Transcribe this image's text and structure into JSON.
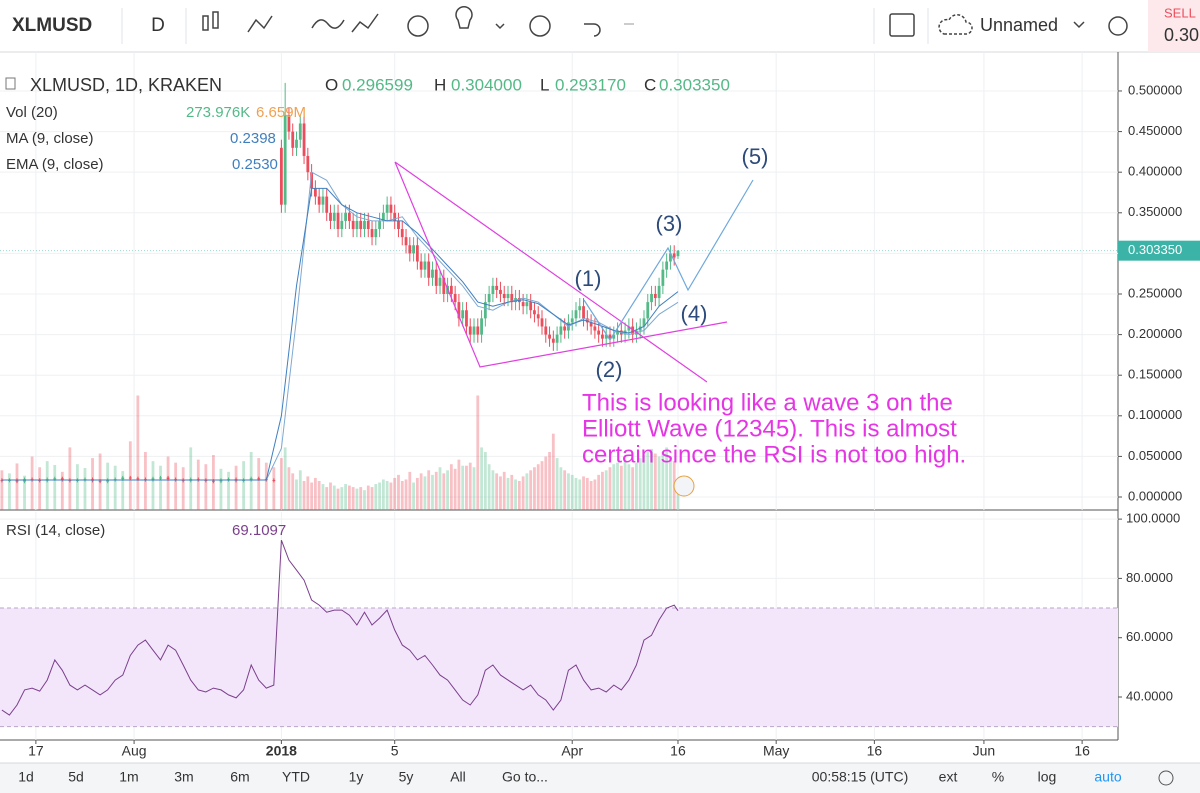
{
  "toolbar": {
    "symbol": "XLMUSD",
    "interval": "D",
    "layout": "Unnamed",
    "sell": "SELL",
    "sell_price": "0.30"
  },
  "legend": {
    "symbol": "XLMUSD, 1D, KRAKEN",
    "o_key": "O",
    "o": "0.296599",
    "h_key": "H",
    "h": "0.304000",
    "l_key": "L",
    "l": "0.293170",
    "c_key": "C",
    "c": "0.303350",
    "vol": "Vol (20)",
    "vol_value": "273.976K",
    "vol_ma": "6.659M",
    "ma": "MA (9, close)",
    "ma_value": "0.2398",
    "ema": "EMA (9, close)",
    "ema_value": "0.2530",
    "rsi": "RSI (14, close)",
    "rsi_value": "69.1097"
  },
  "chart_data": {
    "type": "candlestick",
    "colors": {
      "up": "#53b987",
      "down": "#eb4d5c",
      "ma": "#7fa9d3",
      "ema": "#3f7fbf",
      "rsi": "#7b3f8c",
      "last": "#3bb3a6"
    },
    "grid": true,
    "xlim": [
      -0.5,
      295.5
    ],
    "ylim": [
      -0.016,
      0.548
    ],
    "yticks": [
      {
        "value": 0.5,
        "label": "0.500000"
      },
      {
        "value": 0.45,
        "label": "0.450000"
      },
      {
        "value": 0.4,
        "label": "0.400000"
      },
      {
        "value": 0.35,
        "label": "0.350000"
      },
      {
        "value": 0.3,
        "label": "0.300000"
      },
      {
        "value": 0.25,
        "label": "0.250000"
      },
      {
        "value": 0.2,
        "label": "0.200000"
      },
      {
        "value": 0.15,
        "label": "0.150000"
      },
      {
        "value": 0.1,
        "label": "0.100000"
      },
      {
        "value": 0.05,
        "label": "0.050000"
      },
      {
        "value": 0,
        "label": "0.000000"
      }
    ],
    "xticks": [
      {
        "value": 9,
        "label": "17"
      },
      {
        "value": 35,
        "label": "Aug"
      },
      {
        "value": 74,
        "label": "2018"
      },
      {
        "value": 104,
        "label": "5"
      },
      {
        "value": 151,
        "label": "Apr"
      },
      {
        "value": 179,
        "label": "16"
      },
      {
        "value": 205,
        "label": "May"
      },
      {
        "value": 231,
        "label": "16"
      },
      {
        "value": 260,
        "label": "Jun"
      },
      {
        "value": 286,
        "label": "16"
      }
    ],
    "last_price": {
      "value": 0.30335,
      "label": "0.303350"
    },
    "candles": {
      "x": [
        0,
        2,
        4,
        6,
        8,
        10,
        12,
        14,
        16,
        18,
        20,
        22,
        24,
        26,
        28,
        30,
        32,
        34,
        36,
        38,
        40,
        42,
        44,
        46,
        48,
        50,
        52,
        54,
        56,
        58,
        60,
        62,
        64,
        66,
        68,
        70,
        72,
        74,
        75,
        76,
        77,
        78,
        79,
        80,
        81,
        82,
        83,
        84,
        85,
        86,
        87,
        88,
        89,
        90,
        91,
        92,
        93,
        94,
        95,
        96,
        97,
        98,
        99,
        100,
        101,
        102,
        103,
        104,
        105,
        106,
        107,
        108,
        109,
        110,
        111,
        112,
        113,
        114,
        115,
        116,
        117,
        118,
        119,
        120,
        121,
        122,
        123,
        124,
        125,
        126,
        127,
        128,
        129,
        130,
        131,
        132,
        133,
        134,
        135,
        136,
        137,
        138,
        139,
        140,
        141,
        142,
        143,
        144,
        145,
        146,
        147,
        148,
        149,
        150,
        151,
        152,
        153,
        154,
        155,
        156,
        157,
        158,
        159,
        160,
        161,
        162,
        163,
        164,
        165,
        166,
        167,
        168,
        169,
        170,
        171,
        172,
        173,
        174,
        175,
        176,
        177,
        178,
        179
      ],
      "open": [
        0.021,
        0.02,
        0.021,
        0.019,
        0.022,
        0.021,
        0.02,
        0.022,
        0.023,
        0.021,
        0.02,
        0.021,
        0.022,
        0.02,
        0.019,
        0.021,
        0.022,
        0.024,
        0.023,
        0.022,
        0.021,
        0.023,
        0.024,
        0.022,
        0.021,
        0.02,
        0.022,
        0.021,
        0.02,
        0.019,
        0.021,
        0.022,
        0.02,
        0.021,
        0.023,
        0.022,
        0.021,
        0.43,
        0.36,
        0.47,
        0.45,
        0.43,
        0.44,
        0.46,
        0.42,
        0.4,
        0.38,
        0.37,
        0.36,
        0.37,
        0.35,
        0.34,
        0.35,
        0.33,
        0.34,
        0.35,
        0.34,
        0.33,
        0.34,
        0.33,
        0.34,
        0.33,
        0.32,
        0.33,
        0.34,
        0.35,
        0.36,
        0.35,
        0.34,
        0.33,
        0.32,
        0.31,
        0.3,
        0.31,
        0.29,
        0.28,
        0.29,
        0.27,
        0.28,
        0.26,
        0.27,
        0.25,
        0.26,
        0.25,
        0.24,
        0.22,
        0.23,
        0.21,
        0.2,
        0.21,
        0.2,
        0.22,
        0.24,
        0.25,
        0.26,
        0.255,
        0.25,
        0.245,
        0.25,
        0.24,
        0.245,
        0.24,
        0.235,
        0.24,
        0.23,
        0.225,
        0.22,
        0.21,
        0.2,
        0.195,
        0.19,
        0.2,
        0.21,
        0.205,
        0.215,
        0.22,
        0.23,
        0.235,
        0.22,
        0.215,
        0.21,
        0.205,
        0.2,
        0.195,
        0.2,
        0.195,
        0.2,
        0.205,
        0.2,
        0.205,
        0.21,
        0.2,
        0.205,
        0.21,
        0.22,
        0.24,
        0.25,
        0.245,
        0.26,
        0.28,
        0.29,
        0.3,
        0.296599
      ],
      "high": [
        0.023,
        0.023,
        0.023,
        0.024,
        0.024,
        0.023,
        0.024,
        0.025,
        0.025,
        0.023,
        0.023,
        0.024,
        0.024,
        0.022,
        0.023,
        0.024,
        0.026,
        0.026,
        0.025,
        0.024,
        0.025,
        0.026,
        0.026,
        0.024,
        0.023,
        0.024,
        0.024,
        0.023,
        0.022,
        0.023,
        0.024,
        0.024,
        0.023,
        0.025,
        0.025,
        0.024,
        0.023,
        0.44,
        0.51,
        0.48,
        0.46,
        0.45,
        0.47,
        0.47,
        0.43,
        0.41,
        0.39,
        0.38,
        0.38,
        0.38,
        0.36,
        0.36,
        0.36,
        0.35,
        0.36,
        0.36,
        0.35,
        0.35,
        0.35,
        0.35,
        0.35,
        0.34,
        0.34,
        0.35,
        0.36,
        0.37,
        0.37,
        0.36,
        0.35,
        0.34,
        0.33,
        0.32,
        0.32,
        0.32,
        0.3,
        0.3,
        0.3,
        0.29,
        0.29,
        0.28,
        0.28,
        0.27,
        0.27,
        0.26,
        0.25,
        0.24,
        0.24,
        0.22,
        0.22,
        0.22,
        0.23,
        0.25,
        0.26,
        0.27,
        0.27,
        0.265,
        0.26,
        0.26,
        0.26,
        0.255,
        0.255,
        0.25,
        0.25,
        0.25,
        0.24,
        0.235,
        0.23,
        0.22,
        0.21,
        0.205,
        0.21,
        0.22,
        0.22,
        0.225,
        0.23,
        0.24,
        0.245,
        0.245,
        0.23,
        0.225,
        0.22,
        0.215,
        0.21,
        0.21,
        0.21,
        0.21,
        0.215,
        0.215,
        0.215,
        0.22,
        0.22,
        0.215,
        0.22,
        0.23,
        0.25,
        0.26,
        0.26,
        0.27,
        0.29,
        0.3,
        0.31,
        0.31,
        0.304
      ],
      "low": [
        0.018,
        0.018,
        0.017,
        0.017,
        0.019,
        0.018,
        0.018,
        0.02,
        0.019,
        0.018,
        0.018,
        0.019,
        0.018,
        0.017,
        0.017,
        0.019,
        0.02,
        0.021,
        0.02,
        0.019,
        0.019,
        0.021,
        0.02,
        0.019,
        0.018,
        0.018,
        0.019,
        0.018,
        0.017,
        0.017,
        0.019,
        0.018,
        0.018,
        0.019,
        0.02,
        0.019,
        0.018,
        0.35,
        0.35,
        0.44,
        0.42,
        0.42,
        0.43,
        0.41,
        0.39,
        0.37,
        0.36,
        0.35,
        0.35,
        0.34,
        0.33,
        0.33,
        0.32,
        0.32,
        0.33,
        0.33,
        0.32,
        0.32,
        0.32,
        0.32,
        0.32,
        0.31,
        0.31,
        0.32,
        0.33,
        0.34,
        0.34,
        0.33,
        0.32,
        0.31,
        0.3,
        0.29,
        0.29,
        0.28,
        0.27,
        0.27,
        0.26,
        0.26,
        0.25,
        0.25,
        0.24,
        0.24,
        0.24,
        0.23,
        0.21,
        0.21,
        0.2,
        0.19,
        0.19,
        0.19,
        0.19,
        0.21,
        0.23,
        0.24,
        0.245,
        0.24,
        0.235,
        0.235,
        0.23,
        0.23,
        0.23,
        0.225,
        0.225,
        0.22,
        0.215,
        0.21,
        0.2,
        0.19,
        0.185,
        0.18,
        0.18,
        0.19,
        0.195,
        0.195,
        0.205,
        0.21,
        0.22,
        0.21,
        0.205,
        0.2,
        0.195,
        0.19,
        0.185,
        0.185,
        0.185,
        0.185,
        0.19,
        0.19,
        0.19,
        0.195,
        0.19,
        0.19,
        0.195,
        0.2,
        0.21,
        0.23,
        0.235,
        0.235,
        0.25,
        0.27,
        0.28,
        0.285,
        0.29317
      ],
      "close": [
        0.02,
        0.021,
        0.019,
        0.022,
        0.021,
        0.02,
        0.022,
        0.023,
        0.021,
        0.02,
        0.021,
        0.022,
        0.02,
        0.019,
        0.021,
        0.022,
        0.024,
        0.023,
        0.022,
        0.021,
        0.023,
        0.024,
        0.022,
        0.021,
        0.02,
        0.022,
        0.021,
        0.02,
        0.019,
        0.021,
        0.022,
        0.02,
        0.021,
        0.023,
        0.022,
        0.021,
        0.02,
        0.36,
        0.47,
        0.45,
        0.43,
        0.44,
        0.46,
        0.42,
        0.4,
        0.38,
        0.37,
        0.36,
        0.37,
        0.35,
        0.34,
        0.35,
        0.33,
        0.34,
        0.35,
        0.34,
        0.33,
        0.34,
        0.33,
        0.34,
        0.33,
        0.32,
        0.33,
        0.34,
        0.35,
        0.36,
        0.35,
        0.34,
        0.33,
        0.32,
        0.31,
        0.3,
        0.31,
        0.29,
        0.28,
        0.29,
        0.27,
        0.28,
        0.26,
        0.27,
        0.25,
        0.26,
        0.25,
        0.24,
        0.22,
        0.23,
        0.21,
        0.2,
        0.21,
        0.2,
        0.22,
        0.24,
        0.25,
        0.26,
        0.255,
        0.25,
        0.245,
        0.25,
        0.24,
        0.245,
        0.24,
        0.235,
        0.24,
        0.23,
        0.225,
        0.22,
        0.21,
        0.2,
        0.195,
        0.19,
        0.2,
        0.21,
        0.205,
        0.215,
        0.22,
        0.23,
        0.235,
        0.22,
        0.215,
        0.21,
        0.205,
        0.2,
        0.195,
        0.2,
        0.195,
        0.2,
        0.205,
        0.2,
        0.205,
        0.21,
        0.2,
        0.205,
        0.21,
        0.22,
        0.24,
        0.25,
        0.245,
        0.26,
        0.28,
        0.29,
        0.3,
        0.295,
        0.30335
      ]
    },
    "volume": {
      "ylim": [
        0,
        6000
      ],
      "values": [
        520,
        480,
        610,
        450,
        700,
        560,
        640,
        590,
        500,
        820,
        600,
        550,
        680,
        740,
        620,
        580,
        510,
        900,
        1500,
        760,
        640,
        580,
        700,
        620,
        560,
        820,
        660,
        600,
        720,
        540,
        500,
        580,
        640,
        760,
        680,
        620,
        560,
        680,
        820,
        560,
        480,
        400,
        520,
        380,
        440,
        360,
        420,
        380,
        340,
        300,
        360,
        320,
        280,
        300,
        340,
        320,
        300,
        280,
        300,
        260,
        320,
        300,
        340,
        360,
        400,
        380,
        360,
        420,
        460,
        380,
        400,
        500,
        360,
        420,
        480,
        440,
        520,
        460,
        500,
        560,
        480,
        520,
        600,
        540,
        660,
        580,
        580,
        620,
        560,
        1500,
        820,
        760,
        600,
        520,
        480,
        440,
        500,
        420,
        460,
        400,
        380,
        440,
        480,
        520,
        560,
        600,
        640,
        700,
        760,
        1000,
        680,
        560,
        520,
        480,
        460,
        420,
        400,
        440,
        420,
        380,
        400,
        460,
        500,
        520,
        560,
        600,
        620,
        580,
        640,
        600,
        560,
        620,
        680,
        720,
        760,
        800,
        740,
        700,
        760,
        820,
        700,
        640,
        273.976
      ]
    },
    "ma": {
      "x": [
        0,
        40,
        70,
        74,
        78,
        82,
        86,
        90,
        94,
        98,
        102,
        106,
        110,
        114,
        118,
        122,
        126,
        130,
        134,
        138,
        142,
        146,
        150,
        154,
        158,
        162,
        166,
        170,
        174,
        179
      ],
      "values": [
        0.021,
        0.021,
        0.021,
        0.06,
        0.22,
        0.4,
        0.39,
        0.36,
        0.345,
        0.34,
        0.34,
        0.345,
        0.32,
        0.3,
        0.28,
        0.26,
        0.235,
        0.23,
        0.24,
        0.245,
        0.24,
        0.225,
        0.21,
        0.22,
        0.215,
        0.205,
        0.2,
        0.205,
        0.225,
        0.2398
      ]
    },
    "ema": {
      "x": [
        0,
        40,
        70,
        74,
        78,
        82,
        86,
        90,
        94,
        98,
        102,
        106,
        110,
        114,
        118,
        122,
        126,
        130,
        134,
        138,
        142,
        146,
        150,
        154,
        158,
        162,
        166,
        170,
        174,
        179
      ],
      "values": [
        0.021,
        0.021,
        0.021,
        0.1,
        0.26,
        0.38,
        0.38,
        0.36,
        0.35,
        0.345,
        0.34,
        0.34,
        0.325,
        0.305,
        0.285,
        0.265,
        0.24,
        0.235,
        0.24,
        0.243,
        0.238,
        0.225,
        0.212,
        0.218,
        0.212,
        0.205,
        0.202,
        0.21,
        0.235,
        0.253
      ]
    },
    "rsi": {
      "ylim": [
        25.5,
        102.4
      ],
      "band": [
        30,
        70
      ],
      "yticks": [
        {
          "value": 100,
          "label": "100.0000"
        },
        {
          "value": 80,
          "label": "80.0000"
        },
        {
          "value": 60,
          "label": "60.0000"
        },
        {
          "value": 40,
          "label": "40.0000"
        }
      ],
      "x": [
        0,
        2,
        4,
        6,
        8,
        10,
        12,
        14,
        16,
        18,
        20,
        22,
        24,
        26,
        28,
        30,
        32,
        34,
        36,
        38,
        40,
        42,
        44,
        46,
        48,
        50,
        52,
        54,
        56,
        58,
        60,
        62,
        64,
        66,
        68,
        70,
        72,
        74,
        76,
        78,
        80,
        82,
        84,
        86,
        88,
        90,
        92,
        94,
        96,
        98,
        100,
        102,
        104,
        106,
        108,
        110,
        112,
        114,
        116,
        118,
        120,
        122,
        124,
        126,
        128,
        130,
        132,
        134,
        136,
        138,
        140,
        142,
        144,
        146,
        148,
        150,
        152,
        154,
        156,
        158,
        160,
        162,
        164,
        166,
        168,
        170,
        172,
        174,
        176,
        178,
        179
      ],
      "values": [
        35.6,
        33.9,
        37.3,
        42.4,
        43,
        42,
        45.7,
        52.5,
        49,
        44,
        42.4,
        44,
        42.4,
        40.7,
        42.4,
        45.7,
        47.4,
        54,
        57.5,
        59.2,
        55.8,
        52.5,
        57.5,
        55.8,
        50.8,
        45.7,
        42.4,
        41.7,
        43,
        42.4,
        40.7,
        39.7,
        42.4,
        50.8,
        45.7,
        43,
        44,
        92.9,
        86.2,
        82.8,
        79.4,
        72.7,
        71,
        68.6,
        69.3,
        69.3,
        67.6,
        64.3,
        68.6,
        64.3,
        66.6,
        69.3,
        62.6,
        57.5,
        55.8,
        52.5,
        54,
        50.8,
        47.4,
        45.7,
        42.4,
        39,
        37.3,
        40.7,
        49,
        50.8,
        47.4,
        45.7,
        44,
        42.4,
        44,
        40.7,
        39,
        35.6,
        39,
        49,
        50.8,
        45.7,
        42.4,
        43,
        41.7,
        44,
        42.4,
        45.7,
        50.8,
        59.2,
        60.8,
        66,
        70,
        71,
        69.1097
      ]
    }
  },
  "waves": [
    "(1)",
    "(2)",
    "(3)",
    "(4)",
    "(5)"
  ],
  "note": [
    "This is looking like a wave 3 on the",
    "Elliott Wave (12345). This is almost",
    "certain since the RSI is not too high."
  ],
  "bottom_bar": {
    "ranges": [
      "1d",
      "5d",
      "1m",
      "3m",
      "6m",
      "YTD",
      "1y",
      "5y",
      "All"
    ],
    "goto": "Go to...",
    "clock": "00:58:15 (UTC)",
    "ext": "ext",
    "percent": "%",
    "log": "log",
    "auto": "auto"
  }
}
